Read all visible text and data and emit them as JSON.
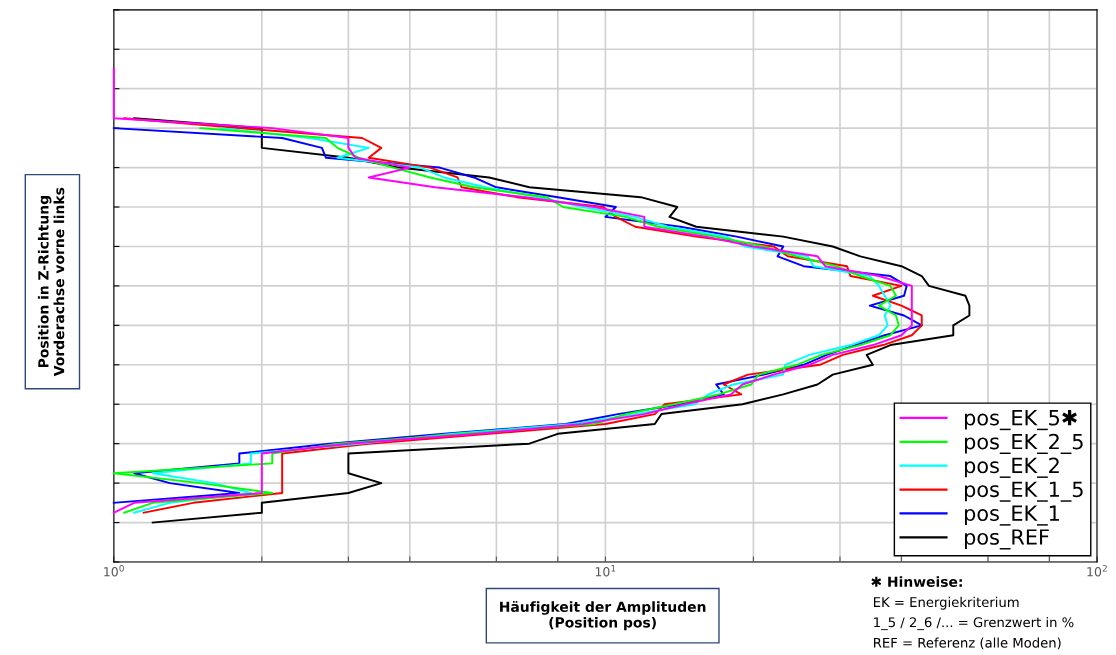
{
  "chart_data": {
    "type": "line",
    "orientation": "horizontal",
    "xlabel": "Häufigkeit der Amplituden\n(Position pos)",
    "ylabel": "Position in Z-Richtung\nVorderachse vorne links",
    "categories": [
      null,
      null,
      null,
      null,
      null,
      null,
      null,
      null,
      null,
      null,
      null,
      null,
      null,
      null,
      null,
      null,
      null,
      null,
      null,
      null,
      null,
      null,
      null,
      null,
      null,
      null,
      null,
      null,
      null,
      null,
      null,
      null,
      null,
      null,
      null,
      null,
      null,
      null,
      null,
      null,
      null,
      null,
      null,
      null,
      null,
      null,
      null,
      null,
      null,
      null,
      null,
      null,
      null,
      null,
      null,
      null,
      null
    ],
    "log": "x",
    "xlim": [
      1,
      100
    ],
    "xticks": [
      {
        "value": 1,
        "label": "10$^{0}$"
      },
      {
        "value": 2,
        "label": null
      },
      {
        "value": 3,
        "label": null
      },
      {
        "value": 4,
        "label": null
      },
      {
        "value": 6,
        "label": null
      },
      {
        "value": 8,
        "label": null
      },
      {
        "value": 10,
        "label": "10$^{1}$"
      },
      {
        "value": 20,
        "label": null
      },
      {
        "value": 30,
        "label": null
      },
      {
        "value": 40,
        "label": null
      },
      {
        "value": 60,
        "label": null
      },
      {
        "value": 80,
        "label": null
      },
      {
        "value": 100,
        "label": "10$^{2}$"
      }
    ],
    "grid": true,
    "legend": "bottom right",
    "line_style": "solid",
    "series": [
      {
        "name": "pos_EK_5✱",
        "color": "#ff00ff",
        "values": [
          null,
          null,
          null,
          null,
          null,
          null,
          1,
          1,
          1,
          1,
          1,
          1,
          2.1,
          3,
          3,
          3.1,
          4,
          3.3,
          4.5,
          6.9,
          9.5,
          12,
          12,
          16,
          20,
          27,
          28,
          36,
          42,
          42,
          42,
          42,
          42,
          40,
          35,
          29,
          26,
          22,
          19,
          18,
          14.5,
          12,
          9,
          5.5,
          3,
          2,
          2,
          2,
          2,
          2,
          1.1,
          1,
          null,
          null,
          null,
          null,
          null
        ]
      },
      {
        "name": "pos_EK_2_5",
        "color": "#00ff00",
        "values": [
          null,
          null,
          null,
          null,
          null,
          null,
          null,
          null,
          null,
          null,
          null,
          null,
          1.5,
          2.7,
          2.85,
          3.15,
          3.7,
          4.4,
          5.4,
          7.6,
          8.2,
          11,
          12.8,
          16.8,
          21,
          24.5,
          29.5,
          33,
          38,
          39,
          36,
          39,
          39.5,
          38,
          33,
          27.5,
          24.5,
          20.5,
          19.8,
          17,
          13.8,
          11,
          9.5,
          5.2,
          2.85,
          2.1,
          2.1,
          1,
          1.5,
          2.1,
          1.2,
          1.05,
          null,
          null,
          null,
          null,
          null
        ]
      },
      {
        "name": "pos_EK_2",
        "color": "#00ffff",
        "values": [
          null,
          null,
          null,
          null,
          null,
          null,
          null,
          null,
          null,
          null,
          null,
          null,
          1.65,
          2.5,
          3.3,
          2.85,
          4.2,
          4.7,
          5.7,
          7.3,
          9,
          11.5,
          13.4,
          17.6,
          19.2,
          25.8,
          26.5,
          34.5,
          36,
          37,
          38,
          37,
          37.5,
          36,
          31.5,
          26,
          23.2,
          23,
          18.2,
          16.2,
          15.2,
          11.5,
          8.6,
          4.9,
          3.15,
          1.9,
          1.9,
          1.2,
          1.6,
          1.9,
          1.3,
          1.1,
          null,
          null,
          null,
          null,
          null
        ]
      },
      {
        "name": "pos_EK_1_5",
        "color": "#ff0000",
        "values": [
          null,
          null,
          null,
          null,
          null,
          null,
          null,
          null,
          null,
          null,
          null,
          1.05,
          1.8,
          3.2,
          3.5,
          3.3,
          4.4,
          5,
          5.1,
          6.6,
          9.9,
          10.5,
          11.5,
          15.3,
          22,
          23.5,
          31,
          31.5,
          40,
          35,
          40,
          44,
          44,
          42,
          36.7,
          30.4,
          27.3,
          19.5,
          17.4,
          18.9,
          13.2,
          12.6,
          10,
          5.8,
          3.3,
          2.2,
          2.2,
          2.2,
          2.2,
          2.2,
          1.45,
          1.15,
          null,
          null,
          null,
          null,
          null
        ]
      },
      {
        "name": "pos_EK_1",
        "color": "#0000ff",
        "values": [
          null,
          null,
          null,
          null,
          null,
          null,
          null,
          null,
          null,
          null,
          null,
          null,
          1,
          2.2,
          2.65,
          2.7,
          4.6,
          5.4,
          6,
          8,
          10.5,
          10,
          14.2,
          18.5,
          23,
          22.4,
          25.3,
          38,
          41,
          40.5,
          34.5,
          40.5,
          44,
          37,
          32.2,
          28.2,
          25.3,
          21,
          16.8,
          17.4,
          14.2,
          10.6,
          8.3,
          4.7,
          2.75,
          1.8,
          1.8,
          1.1,
          1.3,
          1.8,
          1,
          null,
          null,
          null,
          null,
          null,
          null
        ]
      },
      {
        "name": "pos_REF",
        "color": "#000000",
        "values": [
          null,
          null,
          null,
          null,
          null,
          null,
          null,
          null,
          null,
          null,
          null,
          1.1,
          2,
          2,
          2,
          3,
          3.8,
          5.8,
          7,
          11.8,
          14,
          13.5,
          15.3,
          23,
          29,
          33,
          40,
          44,
          45.5,
          54,
          55,
          55,
          51,
          51,
          38,
          34,
          35,
          29,
          27,
          23,
          19,
          13,
          12.6,
          8,
          7,
          3,
          3,
          3,
          3.5,
          3,
          2,
          2,
          1.2,
          null,
          null,
          null,
          null
        ]
      }
    ],
    "annotations": [
      "✱ Hinweise:",
      "EK = Energiekriterium",
      "1_5 / 2_6 /... = Grenzwert in %",
      "REF = Referenz (alle Moden)"
    ]
  }
}
